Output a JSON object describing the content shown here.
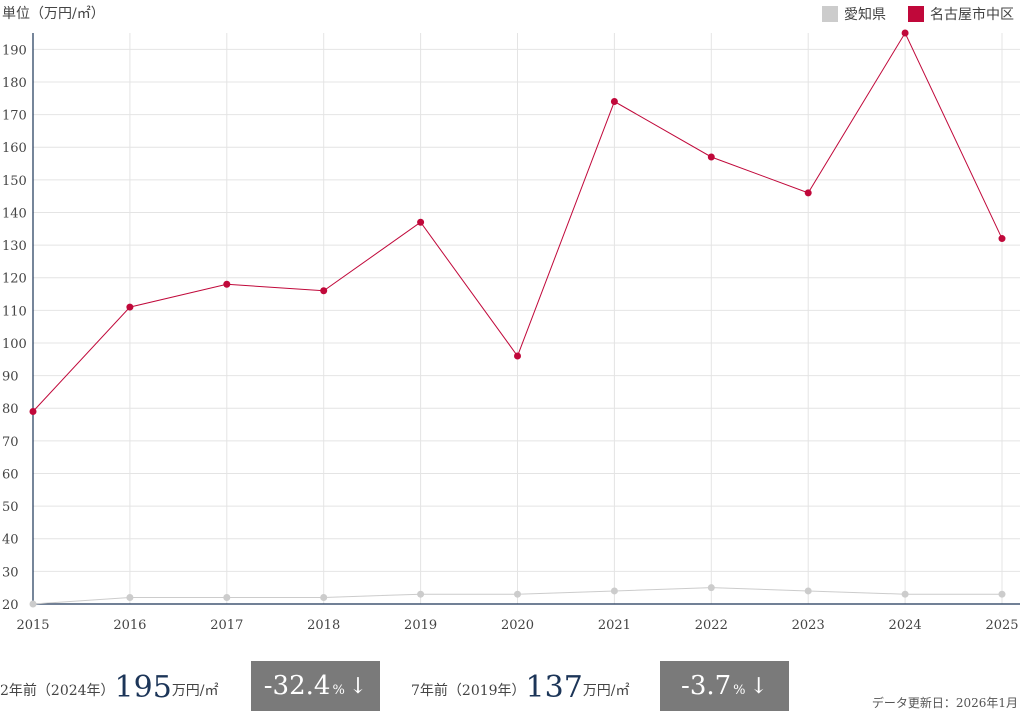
{
  "unit_label": "単位（万円/㎡）",
  "legend": [
    {
      "label": "愛知県",
      "color": "#cccccc"
    },
    {
      "label": "名古屋市中区",
      "color": "#c0083a"
    }
  ],
  "chart_data": {
    "type": "line",
    "x": [
      "2015",
      "2016",
      "2017",
      "2018",
      "2019",
      "2020",
      "2021",
      "2022",
      "2023",
      "2024",
      "2025"
    ],
    "series": [
      {
        "name": "名古屋市中区",
        "color": "#c0083a",
        "values": [
          79,
          111,
          118,
          116,
          137,
          96,
          174,
          157,
          146,
          195,
          132
        ]
      },
      {
        "name": "愛知県",
        "color": "#cccccc",
        "values": [
          20,
          22,
          22,
          22,
          23,
          23,
          24,
          25,
          24,
          23,
          23
        ]
      }
    ],
    "ylim": [
      20,
      195
    ],
    "yticks": [
      20,
      30,
      40,
      50,
      60,
      70,
      80,
      90,
      100,
      110,
      120,
      130,
      140,
      150,
      160,
      170,
      180,
      190
    ],
    "grid": true,
    "legend_position": "top-right"
  },
  "summary": {
    "two_years": {
      "label": "2年前（2024年）",
      "value": "195",
      "unit": "万円/㎡",
      "change": "-32.4",
      "pct": "%",
      "arrow": "↓"
    },
    "seven_years": {
      "label": "7年前（2019年）",
      "value": "137",
      "unit": "万円/㎡",
      "change": "-3.7",
      "pct": "%",
      "arrow": "↓"
    }
  },
  "update_note": "データ更新日：2026年1月"
}
